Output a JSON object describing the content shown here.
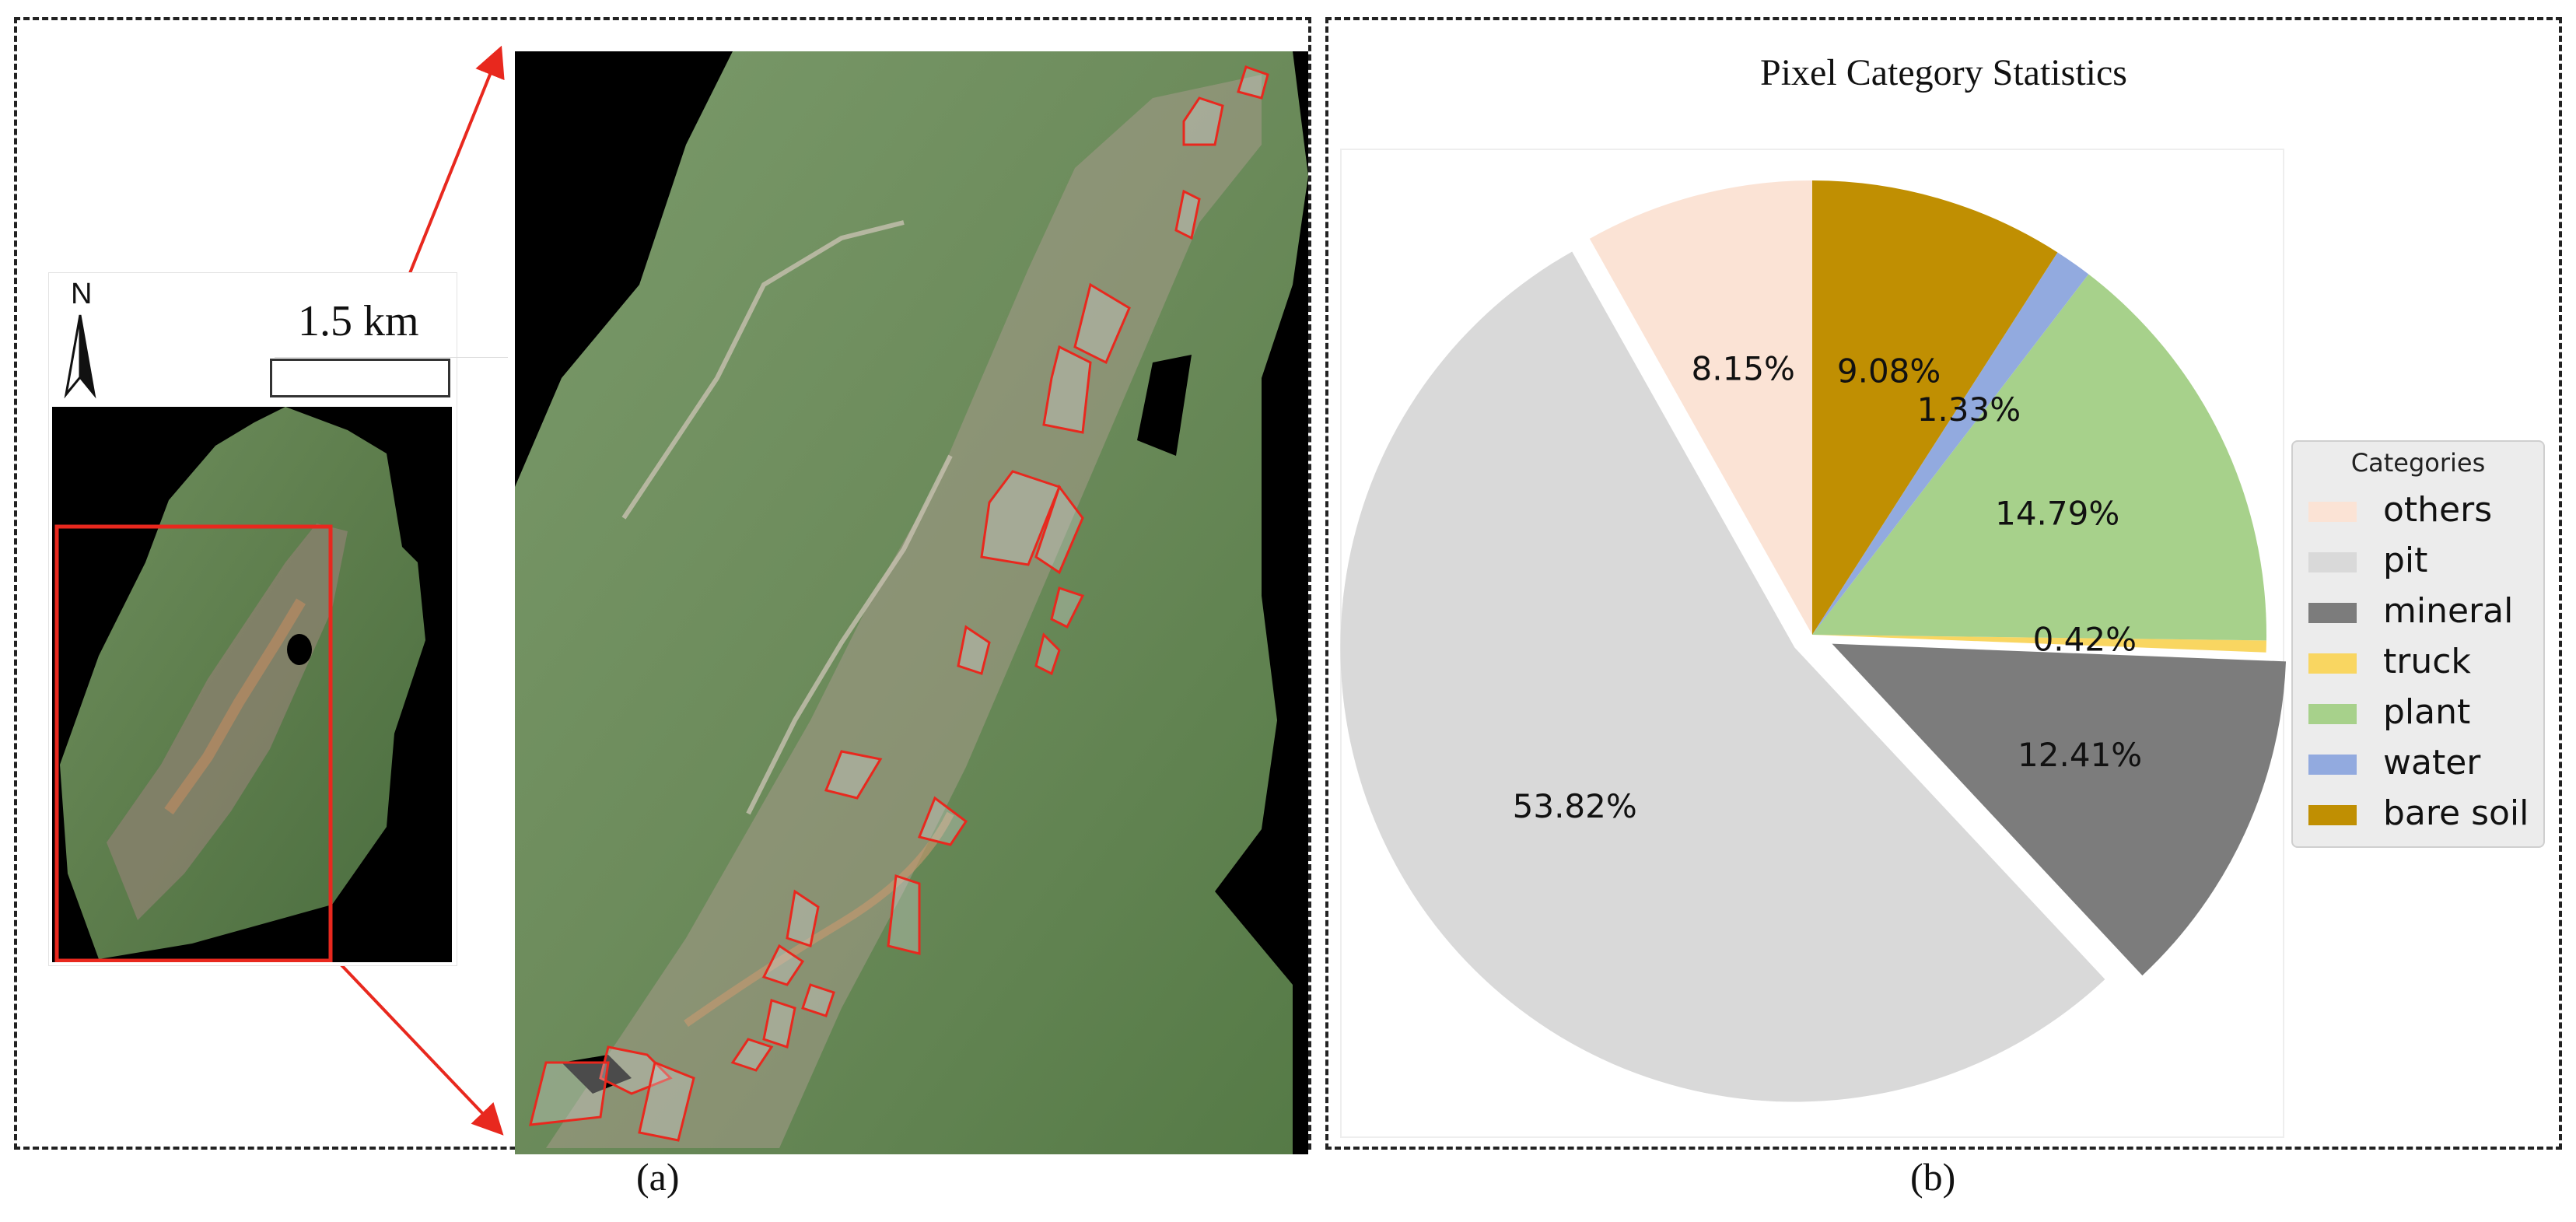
{
  "panel_a": {
    "caption": "(a)",
    "north_label": "N",
    "scale_label": "1.5 km",
    "colors": {
      "highlight": "#e8281e",
      "map_bg": "#000000"
    }
  },
  "panel_b": {
    "caption": "(b)"
  },
  "chart_data": {
    "type": "pie",
    "title": "Pixel Category Statistics",
    "legend_title": "Categories",
    "legend_position": "right",
    "slices": [
      {
        "label": "others",
        "value": 8.15,
        "display": "8.15%",
        "color": "#fbe3d5",
        "explode": 0
      },
      {
        "label": "pit",
        "value": 53.82,
        "display": "53.82%",
        "color": "#d9d9d9",
        "explode": 1
      },
      {
        "label": "mineral",
        "value": 12.41,
        "display": "12.41%",
        "color": "#7c7c7c",
        "explode": 1
      },
      {
        "label": "truck",
        "value": 0.42,
        "display": "0.42%",
        "color": "#f9d661",
        "explode": 0
      },
      {
        "label": "plant",
        "value": 14.79,
        "display": "14.79%",
        "color": "#a7d18b",
        "explode": 0
      },
      {
        "label": "water",
        "value": 1.33,
        "display": "1.33%",
        "color": "#92aadf",
        "explode": 0
      },
      {
        "label": "bare soil",
        "value": 9.08,
        "display": "9.08%",
        "color": "#c08f02",
        "explode": 0
      }
    ],
    "start_angle_deg": 90,
    "direction": "counterclockwise"
  }
}
